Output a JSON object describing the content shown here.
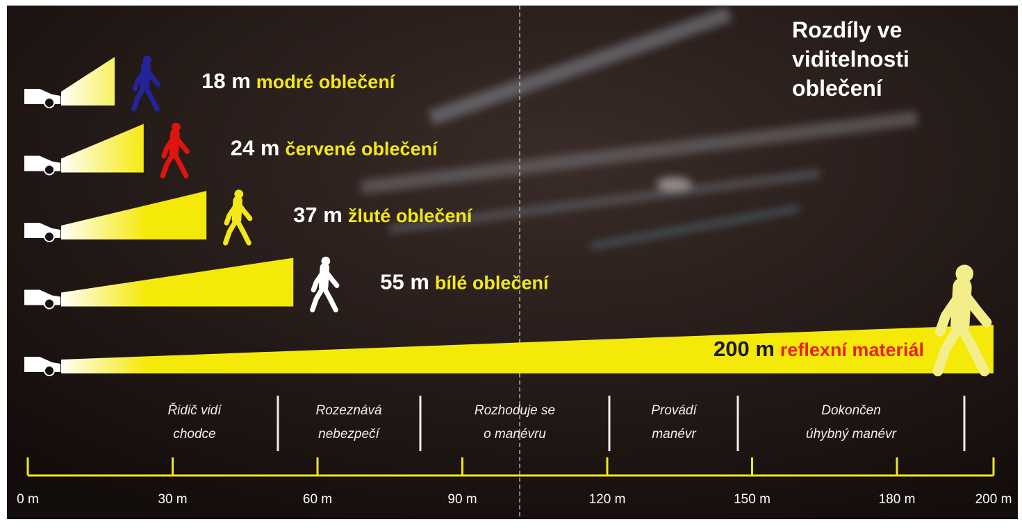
{
  "chart_data": {
    "type": "bar",
    "orientation": "horizontal",
    "title": "Rozdíly ve viditelnosti oblečení",
    "categories": [
      "modré oblečení",
      "červené oblečení",
      "žluté oblečení",
      "bílé oblečení",
      "reflexní materiál"
    ],
    "values": [
      18,
      24,
      37,
      55,
      200
    ],
    "value_labels": [
      "18 m",
      "24 m",
      "37 m",
      "55 m",
      "200 m"
    ],
    "colors": [
      "#23239a",
      "#e0140f",
      "#f2e81a",
      "#ffffff",
      "#f3ee8a"
    ],
    "label_colors": [
      "#f2e81a",
      "#f2e81a",
      "#f2e81a",
      "#f2e81a",
      "#e8201a"
    ],
    "value_label_colors": [
      "#ffffff",
      "#ffffff",
      "#ffffff",
      "#ffffff",
      "#1a1a1a"
    ],
    "beam_color": "#f5e90a",
    "axis_color": "#f2e81a",
    "xlim": [
      0,
      200
    ],
    "xticks": [
      {
        "value": 0,
        "label": "0 m"
      },
      {
        "value": 30,
        "label": "30 m"
      },
      {
        "value": 60,
        "label": "60 m"
      },
      {
        "value": 90,
        "label": "90 m"
      },
      {
        "value": 120,
        "label": "120 m"
      },
      {
        "value": 150,
        "label": "150 m"
      },
      {
        "value": 180,
        "label": "180 m"
      },
      {
        "value": 200,
        "label": "200 m"
      }
    ],
    "phases": [
      "Řidič vidí\nchodce",
      "Rozeznává\nnebezpečí",
      "Rozhoduje se\no manévru",
      "Provádí\nmanévr",
      "Dokončen\núhybný manévr"
    ]
  }
}
